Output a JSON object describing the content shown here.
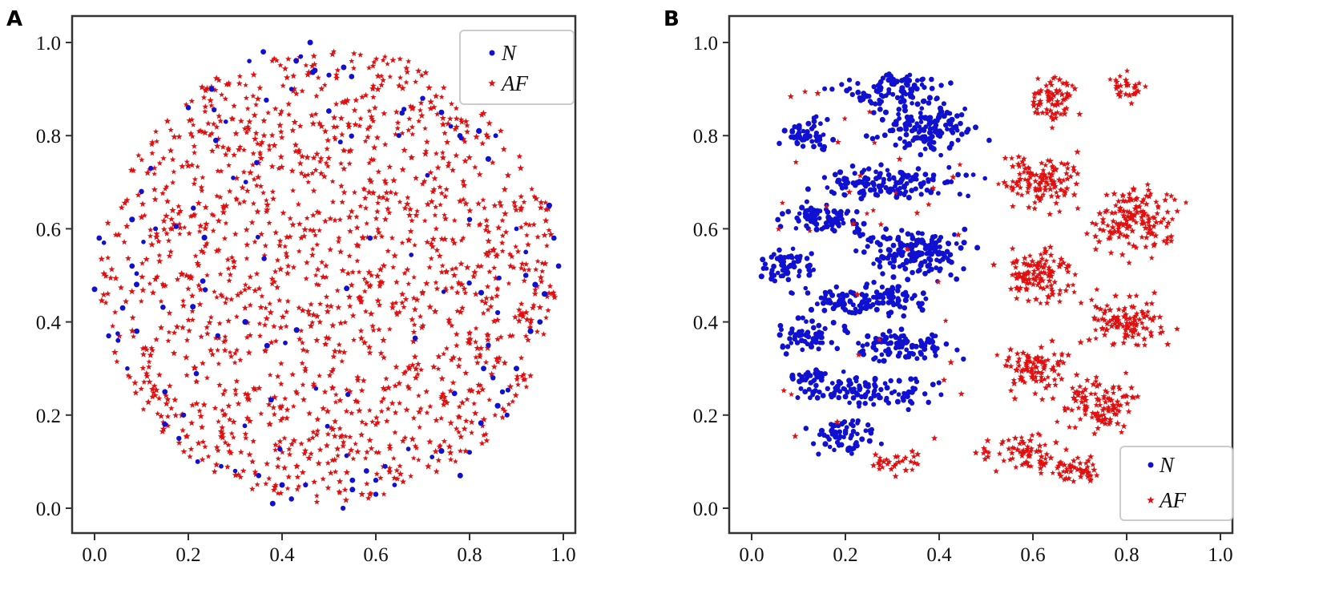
{
  "colors": {
    "N": "#1010d0",
    "AF": "#e01010",
    "axis": "#333333",
    "legend_border": "#cccccc"
  },
  "chart_data": [
    {
      "type": "scatter",
      "panel_label": "A",
      "title": "",
      "xlabel": "",
      "ylabel": "",
      "xlim": [
        -0.05,
        1.03
      ],
      "ylim": [
        -0.05,
        1.03
      ],
      "xticks": [
        "0.0",
        "0.2",
        "0.4",
        "0.6",
        "0.8",
        "1.0"
      ],
      "yticks": [
        "0.0",
        "0.2",
        "0.4",
        "0.6",
        "0.8",
        "1.0"
      ],
      "grid": false,
      "legend": {
        "placement": "top-right",
        "entries": [
          "N",
          "AF"
        ]
      },
      "series": [
        {
          "name": "N",
          "marker": "dot",
          "color": "#1010d0",
          "x": [
            0.0,
            0.01,
            0.02,
            0.03,
            0.05,
            0.06,
            0.07,
            0.08,
            0.1,
            0.12,
            0.15,
            0.18,
            0.2,
            0.22,
            0.25,
            0.28,
            0.33,
            0.36,
            0.38,
            0.4,
            0.42,
            0.44,
            0.46,
            0.47,
            0.5,
            0.53,
            0.55,
            0.58,
            0.6,
            0.64,
            0.7,
            0.74,
            0.76,
            0.78,
            0.8,
            0.82,
            0.83,
            0.84,
            0.86,
            0.88,
            0.9,
            0.92,
            0.94,
            0.95,
            0.96,
            0.97,
            0.98,
            0.99,
            0.62,
            0.72,
            0.8,
            0.85,
            0.87,
            0.9,
            0.93,
            0.55,
            0.45,
            0.35,
            0.3,
            0.27,
            0.19,
            0.15,
            0.13,
            0.09,
            0.08,
            0.92,
            0.86,
            0.84,
            0.6,
            0.42
          ],
          "y": [
            0.47,
            0.58,
            0.57,
            0.37,
            0.36,
            0.43,
            0.3,
            0.52,
            0.68,
            0.73,
            0.18,
            0.15,
            0.86,
            0.1,
            0.9,
            0.83,
            0.96,
            0.98,
            0.01,
            0.05,
            0.9,
            0.97,
            1.0,
            0.94,
            0.93,
            0.0,
            0.04,
            0.08,
            0.06,
            0.05,
            0.88,
            0.85,
            0.82,
            0.07,
            0.12,
            0.81,
            0.3,
            0.35,
            0.42,
            0.2,
            0.6,
            0.5,
            0.48,
            0.4,
            0.46,
            0.65,
            0.58,
            0.52,
            0.09,
            0.11,
            0.62,
            0.28,
            0.25,
            0.3,
            0.38,
            0.06,
            0.05,
            0.07,
            0.08,
            0.09,
            0.2,
            0.25,
            0.6,
            0.38,
            0.62,
            0.55,
            0.22,
            0.75,
            0.03,
            0.02
          ]
        },
        {
          "name": "AF",
          "marker": "star",
          "color": "#e01010",
          "density": "fills disk centered (0.50,0.50) radius 0.49"
        }
      ]
    },
    {
      "type": "scatter",
      "panel_label": "B",
      "title": "",
      "xlabel": "",
      "ylabel": "",
      "xlim": [
        -0.05,
        1.03
      ],
      "ylim": [
        -0.05,
        1.03
      ],
      "xticks": [
        "0.0",
        "0.2",
        "0.4",
        "0.6",
        "0.8",
        "1.0"
      ],
      "yticks": [
        "0.0",
        "0.2",
        "0.4",
        "0.6",
        "0.8",
        "1.0"
      ],
      "grid": false,
      "legend": {
        "placement": "bottom-right",
        "entries": [
          "N",
          "AF"
        ]
      },
      "series": [
        {
          "name": "N",
          "marker": "dot",
          "color": "#1010d0",
          "density": "dense clusters on left half, x 0.0–0.55"
        },
        {
          "name": "AF",
          "marker": "star",
          "color": "#e01010",
          "density": "dense clusters on right half, x 0.48–1.0"
        }
      ]
    }
  ]
}
